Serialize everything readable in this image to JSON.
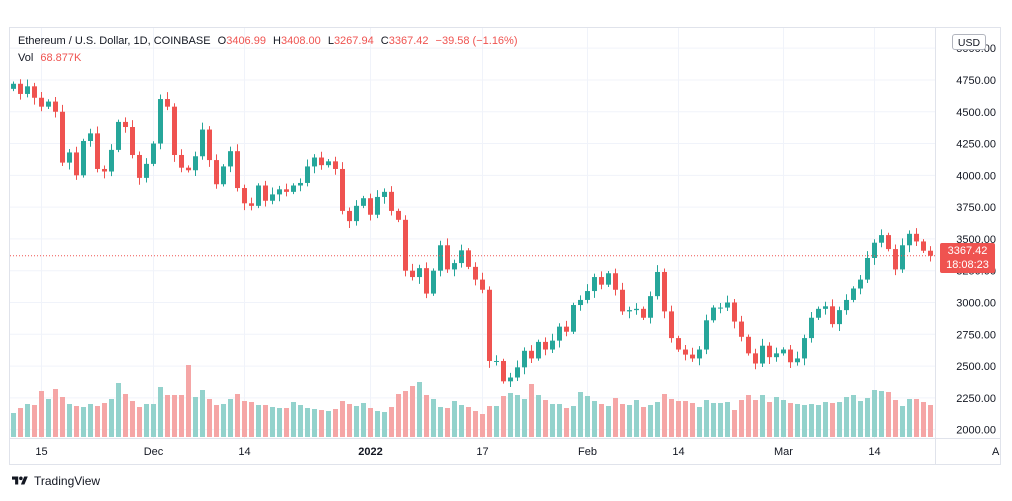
{
  "legend": {
    "symbol": "Ethereum / U.S. Dollar, 1D, COINBASE",
    "o_label": "O",
    "o_value": "3406.99",
    "h_label": "H",
    "h_value": "3408.00",
    "l_label": "L",
    "l_value": "3267.94",
    "c_label": "C",
    "c_value": "3367.42",
    "change": "−39.58 (−1.16%)"
  },
  "volume": {
    "label": "Vol",
    "value": "68.877K"
  },
  "currency_button": "USD",
  "last_price": {
    "price": "3367.42",
    "countdown": "18:08:23",
    "value": 3367.42
  },
  "footer": {
    "brand": "TradingView"
  },
  "colors": {
    "up": "#26a69a",
    "down": "#ef5350",
    "vol_up": "#93d2cc",
    "vol_down": "#f5a6a6",
    "grid": "#f0f3fa",
    "text": "#131722"
  },
  "chart_data": {
    "type": "candlestick",
    "y_ticks": [
      "2000.00",
      "2250.00",
      "2500.00",
      "2750.00",
      "3000.00",
      "3250.00",
      "3500.00",
      "3750.00",
      "4000.00",
      "4250.00",
      "4500.00",
      "4750.00",
      "5000.00"
    ],
    "y_tick_values": [
      2000,
      2250,
      2500,
      2750,
      3000,
      3250,
      3500,
      3750,
      4000,
      4250,
      4500,
      4750,
      5000
    ],
    "ylim": [
      1950,
      5080
    ],
    "x_labels": [
      {
        "text": "15",
        "index": 4,
        "bold": false
      },
      {
        "text": "Dec",
        "index": 20,
        "bold": false
      },
      {
        "text": "14",
        "index": 33,
        "bold": false
      },
      {
        "text": "2022",
        "index": 51,
        "bold": true
      },
      {
        "text": "17",
        "index": 67,
        "bold": false
      },
      {
        "text": "Feb",
        "index": 82,
        "bold": false
      },
      {
        "text": "14",
        "index": 95,
        "bold": false
      },
      {
        "text": "Mar",
        "index": 110,
        "bold": false
      },
      {
        "text": "14",
        "index": 123,
        "bold": false
      },
      {
        "text": "Apr",
        "index": 141,
        "bold": false
      }
    ],
    "closes": [
      4720,
      4640,
      4700,
      4610,
      4540,
      4580,
      4500,
      4100,
      4180,
      4000,
      4270,
      4330,
      4050,
      4030,
      4200,
      4420,
      4380,
      4160,
      3980,
      4090,
      4250,
      4600,
      4540,
      4160,
      4060,
      4040,
      4150,
      4360,
      4120,
      3930,
      4070,
      4190,
      3900,
      3780,
      3760,
      3920,
      3800,
      3850,
      3890,
      3870,
      3920,
      3940,
      4070,
      4140,
      4080,
      4110,
      4050,
      3720,
      3640,
      3760,
      3820,
      3690,
      3830,
      3870,
      3720,
      3650,
      3250,
      3200,
      3270,
      3070,
      3250,
      3450,
      3260,
      3310,
      3410,
      3280,
      3180,
      3100,
      2540,
      2540,
      2380,
      2410,
      2490,
      2620,
      2560,
      2690,
      2630,
      2700,
      2810,
      2770,
      2980,
      3020,
      3090,
      3200,
      3140,
      3230,
      3100,
      2930,
      2940,
      2950,
      2880,
      3050,
      3240,
      2930,
      2720,
      2630,
      2590,
      2560,
      2630,
      2860,
      2960,
      2960,
      3000,
      2850,
      2730,
      2600,
      2520,
      2660,
      2570,
      2600,
      2630,
      2530,
      2560,
      2720,
      2880,
      2950,
      2970,
      2830,
      2940,
      3020,
      3110,
      3180,
      3350,
      3470,
      3530,
      3420,
      3260,
      3450,
      3540,
      3480,
      3406.99,
      3367.42
    ],
    "volumes": [
      24,
      29,
      33,
      32,
      46,
      38,
      48,
      40,
      33,
      31,
      30,
      33,
      31,
      34,
      38,
      54,
      43,
      36,
      30,
      33,
      33,
      50,
      42,
      42,
      42,
      72,
      40,
      47,
      38,
      32,
      33,
      38,
      43,
      36,
      35,
      32,
      32,
      30,
      29,
      29,
      35,
      32,
      29,
      28,
      27,
      26,
      28,
      36,
      33,
      31,
      34,
      29,
      26,
      25,
      30,
      43,
      46,
      51,
      55,
      42,
      38,
      30,
      29,
      36,
      32,
      30,
      26,
      23,
      31,
      31,
      41,
      44,
      42,
      38,
      53,
      42,
      37,
      33,
      33,
      29,
      31,
      45,
      41,
      36,
      33,
      31,
      39,
      33,
      32,
      37,
      30,
      32,
      35,
      43,
      38,
      36,
      36,
      34,
      30,
      37,
      34,
      34,
      35,
      27,
      37,
      42,
      37,
      42,
      35,
      40,
      37,
      34,
      33,
      32,
      33,
      32,
      35,
      34,
      35,
      40,
      42,
      36,
      39,
      47,
      46,
      45,
      37,
      31,
      38,
      38,
      35,
      32
    ]
  }
}
